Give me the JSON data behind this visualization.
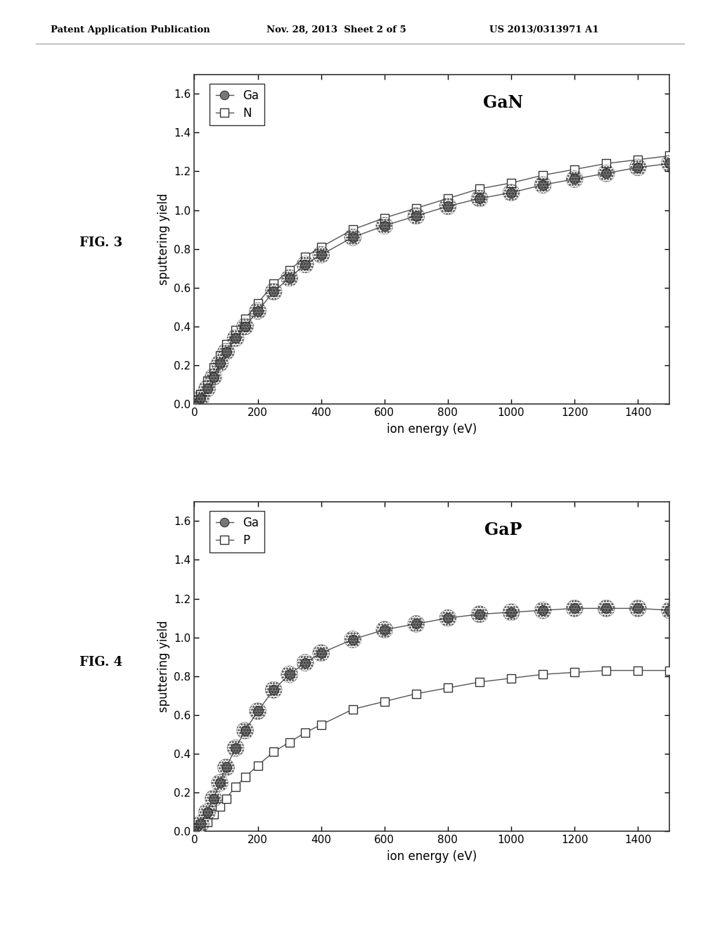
{
  "header_left": "Patent Application Publication",
  "header_mid": "Nov. 28, 2013  Sheet 2 of 5",
  "header_right": "US 2013/0313971 A1",
  "fig3_label": "FIG. 3",
  "fig4_label": "FIG. 4",
  "fig3_title": "GaN",
  "fig4_title": "GaP",
  "xlabel": "ion energy (eV)",
  "ylabel": "sputtering yield",
  "xlim": [
    0,
    1500
  ],
  "ylim": [
    0,
    1.7
  ],
  "xticks": [
    0,
    200,
    400,
    600,
    800,
    1000,
    1200,
    1400
  ],
  "yticks": [
    0.0,
    0.2,
    0.4,
    0.6,
    0.8,
    1.0,
    1.2,
    1.4,
    1.6
  ],
  "gan_x": [
    0,
    20,
    40,
    60,
    80,
    100,
    130,
    160,
    200,
    250,
    300,
    350,
    400,
    500,
    600,
    700,
    800,
    900,
    1000,
    1100,
    1200,
    1300,
    1400,
    1500
  ],
  "gan_ga_y": [
    0.0,
    0.03,
    0.08,
    0.14,
    0.21,
    0.27,
    0.34,
    0.4,
    0.48,
    0.58,
    0.65,
    0.72,
    0.77,
    0.86,
    0.92,
    0.97,
    1.02,
    1.06,
    1.09,
    1.13,
    1.16,
    1.19,
    1.22,
    1.24
  ],
  "gan_n_y": [
    0.0,
    0.05,
    0.12,
    0.19,
    0.25,
    0.31,
    0.38,
    0.44,
    0.52,
    0.62,
    0.69,
    0.76,
    0.81,
    0.9,
    0.96,
    1.01,
    1.06,
    1.11,
    1.14,
    1.18,
    1.21,
    1.24,
    1.26,
    1.28
  ],
  "gap_x": [
    0,
    20,
    40,
    60,
    80,
    100,
    130,
    160,
    200,
    250,
    300,
    350,
    400,
    500,
    600,
    700,
    800,
    900,
    1000,
    1100,
    1200,
    1300,
    1400,
    1500
  ],
  "gap_ga_y": [
    0.0,
    0.04,
    0.1,
    0.17,
    0.25,
    0.33,
    0.43,
    0.52,
    0.62,
    0.73,
    0.81,
    0.87,
    0.92,
    0.99,
    1.04,
    1.07,
    1.1,
    1.12,
    1.13,
    1.14,
    1.15,
    1.15,
    1.15,
    1.14
  ],
  "gap_p_y": [
    0.0,
    0.02,
    0.05,
    0.09,
    0.13,
    0.17,
    0.23,
    0.28,
    0.34,
    0.41,
    0.46,
    0.51,
    0.55,
    0.63,
    0.67,
    0.71,
    0.74,
    0.77,
    0.79,
    0.81,
    0.82,
    0.83,
    0.83,
    0.83
  ],
  "line_color": "#555555",
  "marker_circle_face": "#777777",
  "marker_circle_edge": "#333333",
  "marker_square_face": "#ffffff",
  "marker_square_edge": "#333333",
  "bg_color": "#ffffff",
  "font_color": "#000000"
}
